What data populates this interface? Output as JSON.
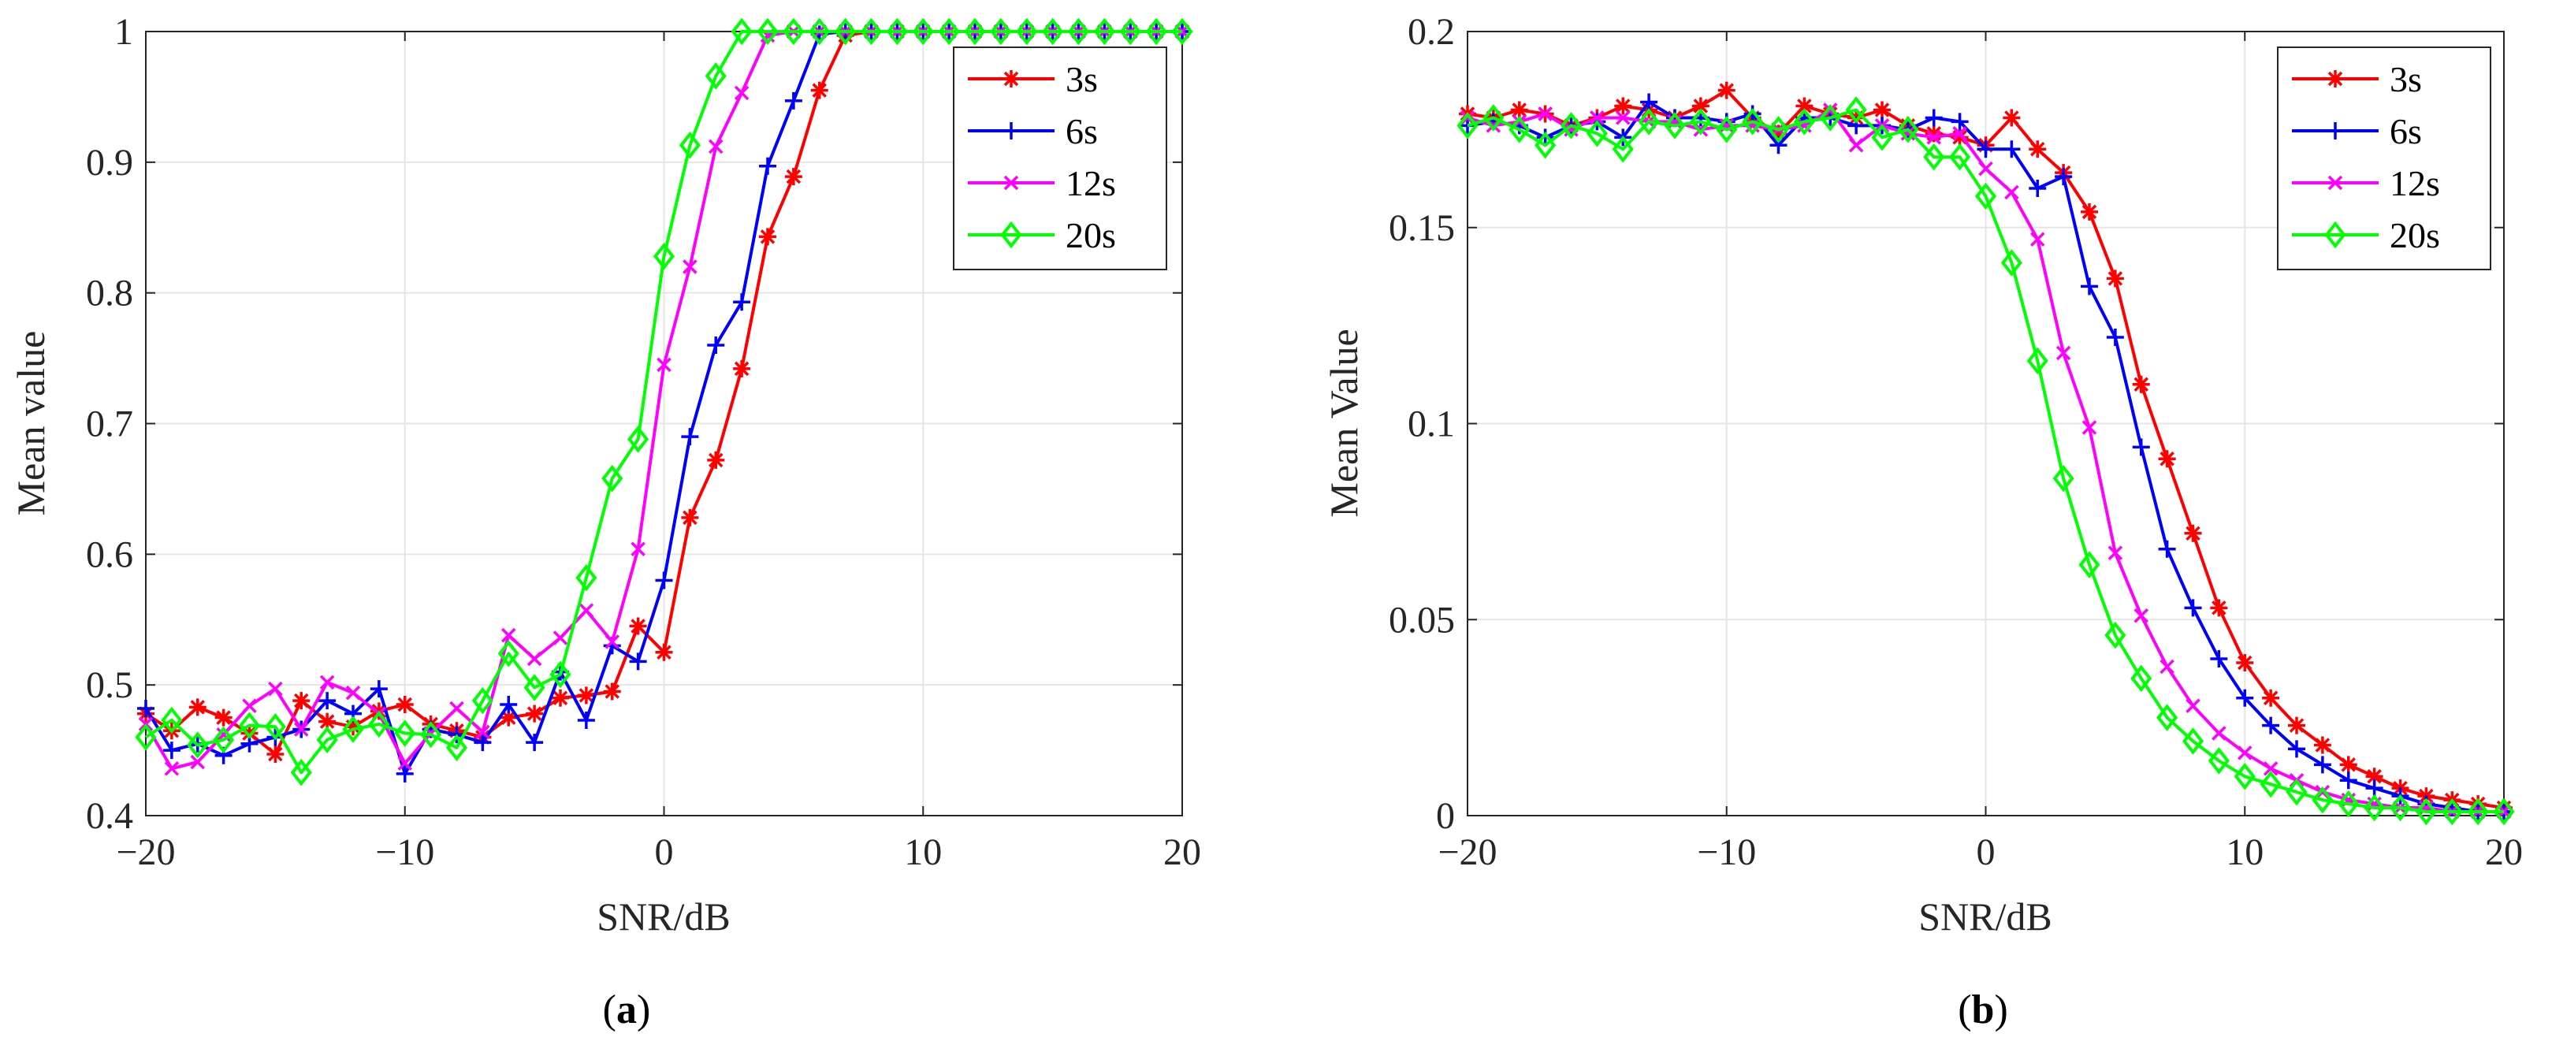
{
  "chart_data": [
    {
      "panel_label": "a",
      "type": "line",
      "title": "",
      "xlabel": "SNR/dB",
      "ylabel": "Mean value",
      "xlim": [
        -20,
        20
      ],
      "ylim": [
        0.4,
        1.0
      ],
      "xticks": [
        -20,
        -10,
        0,
        10,
        20
      ],
      "yticks": [
        0.4,
        0.5,
        0.6,
        0.7,
        0.8,
        0.9,
        1.0
      ],
      "xtick_labels": [
        "−20",
        "−10",
        "0",
        "10",
        "20"
      ],
      "ytick_labels": [
        "0.4",
        "0.5",
        "0.6",
        "0.7",
        "0.8",
        "0.9",
        "1"
      ],
      "grid": true,
      "legend_position": "top-right",
      "x": [
        -20,
        -19,
        -18,
        -17,
        -16,
        -15,
        -14,
        -13,
        -12,
        -11,
        -10,
        -9,
        -8,
        -7,
        -6,
        -5,
        -4,
        -3,
        -2,
        -1,
        0,
        1,
        2,
        3,
        4,
        5,
        6,
        7,
        8,
        9,
        10,
        11,
        12,
        13,
        14,
        15,
        16,
        17,
        18,
        19,
        20
      ],
      "series": [
        {
          "name": "3s",
          "color": "#ff0000",
          "marker": "asterisk",
          "values": [
            0.478,
            0.465,
            0.483,
            0.475,
            0.463,
            0.447,
            0.488,
            0.472,
            0.468,
            0.48,
            0.485,
            0.47,
            0.465,
            0.46,
            0.475,
            0.478,
            0.49,
            0.492,
            0.495,
            0.545,
            0.525,
            0.628,
            0.672,
            0.742,
            0.843,
            0.889,
            0.955,
            0.997,
            1,
            1,
            1,
            1,
            1,
            1,
            1,
            1,
            1,
            1,
            1,
            1,
            1
          ]
        },
        {
          "name": "6s",
          "color": "#0000ff",
          "marker": "plus",
          "values": [
            0.482,
            0.45,
            0.455,
            0.446,
            0.455,
            0.46,
            0.466,
            0.488,
            0.478,
            0.497,
            0.432,
            0.466,
            0.462,
            0.456,
            0.485,
            0.456,
            0.51,
            0.473,
            0.53,
            0.518,
            0.58,
            0.69,
            0.76,
            0.793,
            0.897,
            0.947,
            0.998,
            1,
            1,
            1,
            1,
            1,
            1,
            1,
            1,
            1,
            1,
            1,
            1,
            1,
            1
          ]
        },
        {
          "name": "12s",
          "color": "#ff00ff",
          "marker": "cross",
          "values": [
            0.47,
            0.436,
            0.441,
            0.462,
            0.484,
            0.497,
            0.466,
            0.502,
            0.494,
            0.478,
            0.44,
            0.463,
            0.482,
            0.464,
            0.538,
            0.52,
            0.536,
            0.557,
            0.533,
            0.604,
            0.745,
            0.82,
            0.912,
            0.953,
            0.997,
            1,
            1,
            1,
            1,
            1,
            1,
            1,
            1,
            1,
            1,
            1,
            1,
            1,
            1,
            1,
            1
          ]
        },
        {
          "name": "20s",
          "color": "#00ff00",
          "marker": "diamond",
          "values": [
            0.46,
            0.473,
            0.454,
            0.458,
            0.469,
            0.468,
            0.433,
            0.458,
            0.466,
            0.47,
            0.463,
            0.462,
            0.452,
            0.488,
            0.524,
            0.498,
            0.508,
            0.582,
            0.658,
            0.688,
            0.828,
            0.913,
            0.966,
            1,
            1,
            1,
            1,
            1,
            1,
            1,
            1,
            1,
            1,
            1,
            1,
            1,
            1,
            1,
            1,
            1,
            1
          ]
        }
      ]
    },
    {
      "panel_label": "b",
      "type": "line",
      "title": "",
      "xlabel": "SNR/dB",
      "ylabel": "Mean Value",
      "xlim": [
        -20,
        20
      ],
      "ylim": [
        0,
        0.2
      ],
      "xticks": [
        -20,
        -10,
        0,
        10,
        20
      ],
      "yticks": [
        0,
        0.05,
        0.1,
        0.15,
        0.2
      ],
      "xtick_labels": [
        "−20",
        "−10",
        "0",
        "10",
        "20"
      ],
      "ytick_labels": [
        "0",
        "0.05",
        "0.1",
        "0.15",
        "0.2"
      ],
      "grid": true,
      "legend_position": "top-right",
      "x": [
        -20,
        -19,
        -18,
        -17,
        -16,
        -15,
        -14,
        -13,
        -12,
        -11,
        -10,
        -9,
        -8,
        -7,
        -6,
        -5,
        -4,
        -3,
        -2,
        -1,
        0,
        1,
        2,
        3,
        4,
        5,
        6,
        7,
        8,
        9,
        10,
        11,
        12,
        13,
        14,
        15,
        16,
        17,
        18,
        19,
        20
      ],
      "series": [
        {
          "name": "3s",
          "color": "#ff0000",
          "marker": "asterisk",
          "values": [
            0.179,
            0.178,
            0.18,
            0.179,
            0.176,
            0.178,
            0.181,
            0.18,
            0.178,
            0.181,
            0.185,
            0.178,
            0.174,
            0.181,
            0.179,
            0.178,
            0.18,
            0.176,
            0.174,
            0.173,
            0.171,
            0.178,
            0.17,
            0.164,
            0.154,
            0.137,
            0.11,
            0.091,
            0.072,
            0.053,
            0.039,
            0.03,
            0.023,
            0.018,
            0.013,
            0.01,
            0.007,
            0.005,
            0.004,
            0.003,
            0.002
          ]
        },
        {
          "name": "6s",
          "color": "#0000ff",
          "marker": "plus",
          "values": [
            0.176,
            0.177,
            0.176,
            0.173,
            0.176,
            0.177,
            0.173,
            0.182,
            0.178,
            0.178,
            0.177,
            0.179,
            0.171,
            0.178,
            0.178,
            0.176,
            0.176,
            0.175,
            0.178,
            0.177,
            0.17,
            0.17,
            0.16,
            0.163,
            0.135,
            0.122,
            0.094,
            0.068,
            0.053,
            0.04,
            0.03,
            0.023,
            0.017,
            0.013,
            0.009,
            0.007,
            0.005,
            0.003,
            0.002,
            0.001,
            0.001
          ]
        },
        {
          "name": "12s",
          "color": "#ff00ff",
          "marker": "cross",
          "values": [
            0.178,
            0.176,
            0.177,
            0.179,
            0.175,
            0.178,
            0.178,
            0.177,
            0.177,
            0.175,
            0.176,
            0.176,
            0.175,
            0.176,
            0.18,
            0.171,
            0.176,
            0.174,
            0.173,
            0.174,
            0.165,
            0.159,
            0.147,
            0.118,
            0.099,
            0.067,
            0.051,
            0.038,
            0.028,
            0.021,
            0.016,
            0.012,
            0.009,
            0.006,
            0.004,
            0.003,
            0.002,
            0.002,
            0.001,
            0.001,
            0.001
          ]
        },
        {
          "name": "20s",
          "color": "#00ff00",
          "marker": "diamond",
          "values": [
            0.176,
            0.178,
            0.175,
            0.171,
            0.176,
            0.174,
            0.17,
            0.177,
            0.176,
            0.177,
            0.175,
            0.177,
            0.175,
            0.177,
            0.178,
            0.18,
            0.173,
            0.175,
            0.168,
            0.168,
            0.158,
            0.141,
            0.116,
            0.086,
            0.064,
            0.046,
            0.035,
            0.025,
            0.019,
            0.014,
            0.01,
            0.008,
            0.006,
            0.004,
            0.003,
            0.002,
            0.002,
            0.001,
            0.001,
            0.001,
            0.001
          ]
        }
      ]
    }
  ]
}
